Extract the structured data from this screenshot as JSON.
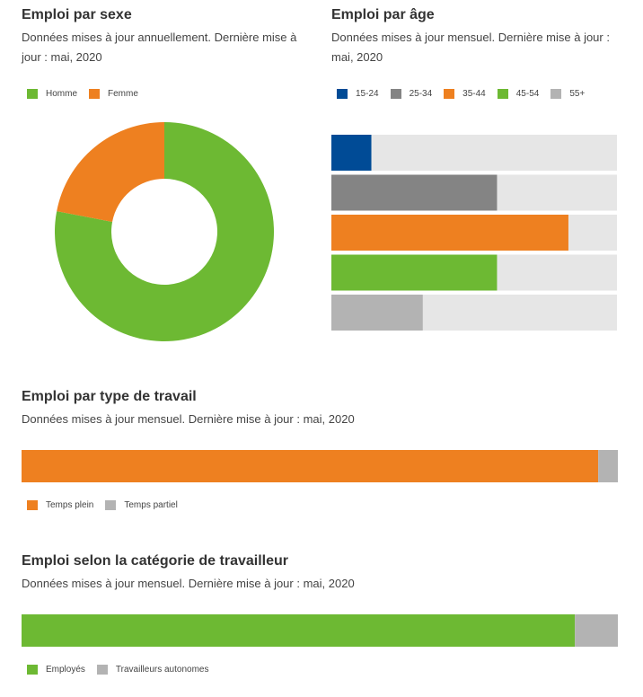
{
  "chart_data": [
    {
      "type": "pie",
      "title": "Emploi par sexe",
      "subtitle": "Données mises à jour annuellement. Dernière mise à jour : mai, 2020",
      "legend_position": "top-left",
      "categories": [
        "Homme",
        "Femme"
      ],
      "values": [
        78,
        22
      ],
      "colors": [
        "#6db933",
        "#ee8020"
      ]
    },
    {
      "type": "bar",
      "title": "Emploi par âge",
      "subtitle": "Données mises à jour mensuel. Dernière mise à jour : mai, 2020",
      "legend_position": "top-left",
      "orientation": "horizontal",
      "categories": [
        "15-24",
        "25-34",
        "35-44",
        "45-54",
        "55+"
      ],
      "values": [
        14,
        58,
        83,
        58,
        32
      ],
      "xlim": [
        0,
        100
      ],
      "colors": [
        "#004b96",
        "#848484",
        "#ee8020",
        "#6db933",
        "#b3b3b3"
      ]
    },
    {
      "type": "bar",
      "title": "Emploi par type de travail",
      "subtitle": "Données mises à jour mensuel. Dernière mise à jour : mai, 2020",
      "legend_position": "bottom-left",
      "orientation": "horizontal-stacked",
      "categories": [
        "Temps plein",
        "Temps partiel"
      ],
      "values": [
        96.7,
        3.3
      ],
      "colors": [
        "#ee8020",
        "#b3b3b3"
      ]
    },
    {
      "type": "bar",
      "title": "Emploi selon la catégorie de travailleur",
      "subtitle": "Données mises à jour mensuel. Dernière mise à jour : mai, 2020",
      "legend_position": "bottom-left",
      "orientation": "horizontal-stacked",
      "categories": [
        "Employés",
        "Travailleurs autonomes"
      ],
      "values": [
        92.8,
        7.2
      ],
      "colors": [
        "#6db933",
        "#b3b3b3"
      ]
    }
  ]
}
